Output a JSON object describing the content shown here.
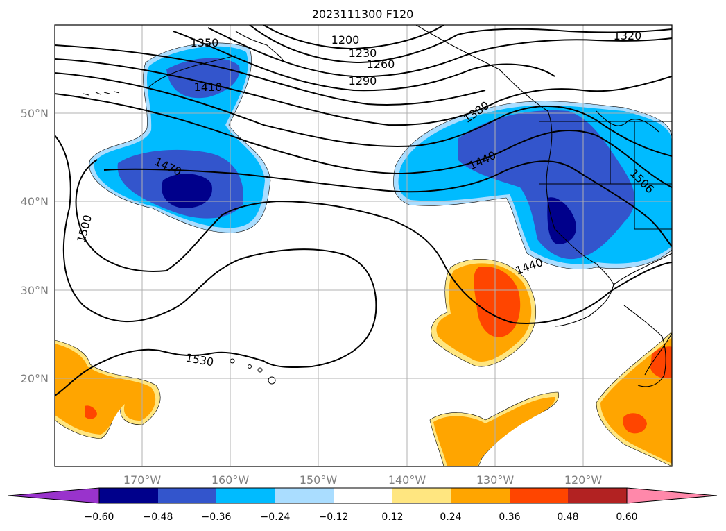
{
  "title": "2023111300 F120",
  "axes": {
    "lon_labels": [
      "170°W",
      "160°W",
      "150°W",
      "140°W",
      "130°W",
      "120°W"
    ],
    "lat_labels": [
      "20°N",
      "30°N",
      "40°N",
      "50°N"
    ],
    "grid": true
  },
  "contour_labels": [
    "1350",
    "1200",
    "1230",
    "1260",
    "1290",
    "1320",
    "1410",
    "1380",
    "1440",
    "1470",
    "1500",
    "1506",
    "1440",
    "1530"
  ],
  "colorbar": {
    "ticks": [
      "−0.60",
      "−0.48",
      "−0.36",
      "−0.24",
      "−0.12",
      "0.12",
      "0.24",
      "0.36",
      "0.48",
      "0.60"
    ],
    "colors": [
      "#9933cc",
      "#00008b",
      "#3355cc",
      "#00bbff",
      "#aaddff",
      "#ffffff",
      "#ffe680",
      "#ffa500",
      "#ff4500",
      "#b22222",
      "#ff88aa"
    ],
    "extend": "both"
  },
  "chart_data": {
    "type": "contour",
    "title": "2023111300 F120",
    "lon_range": [
      -180,
      -110
    ],
    "lat_range": [
      10,
      60
    ],
    "contour_levels": [
      1200,
      1230,
      1260,
      1290,
      1320,
      1350,
      1380,
      1410,
      1440,
      1470,
      1500,
      1530
    ],
    "fill_levels": [
      -0.6,
      -0.48,
      -0.36,
      -0.24,
      -0.12,
      0.12,
      0.24,
      0.36,
      0.48,
      0.6
    ]
  }
}
